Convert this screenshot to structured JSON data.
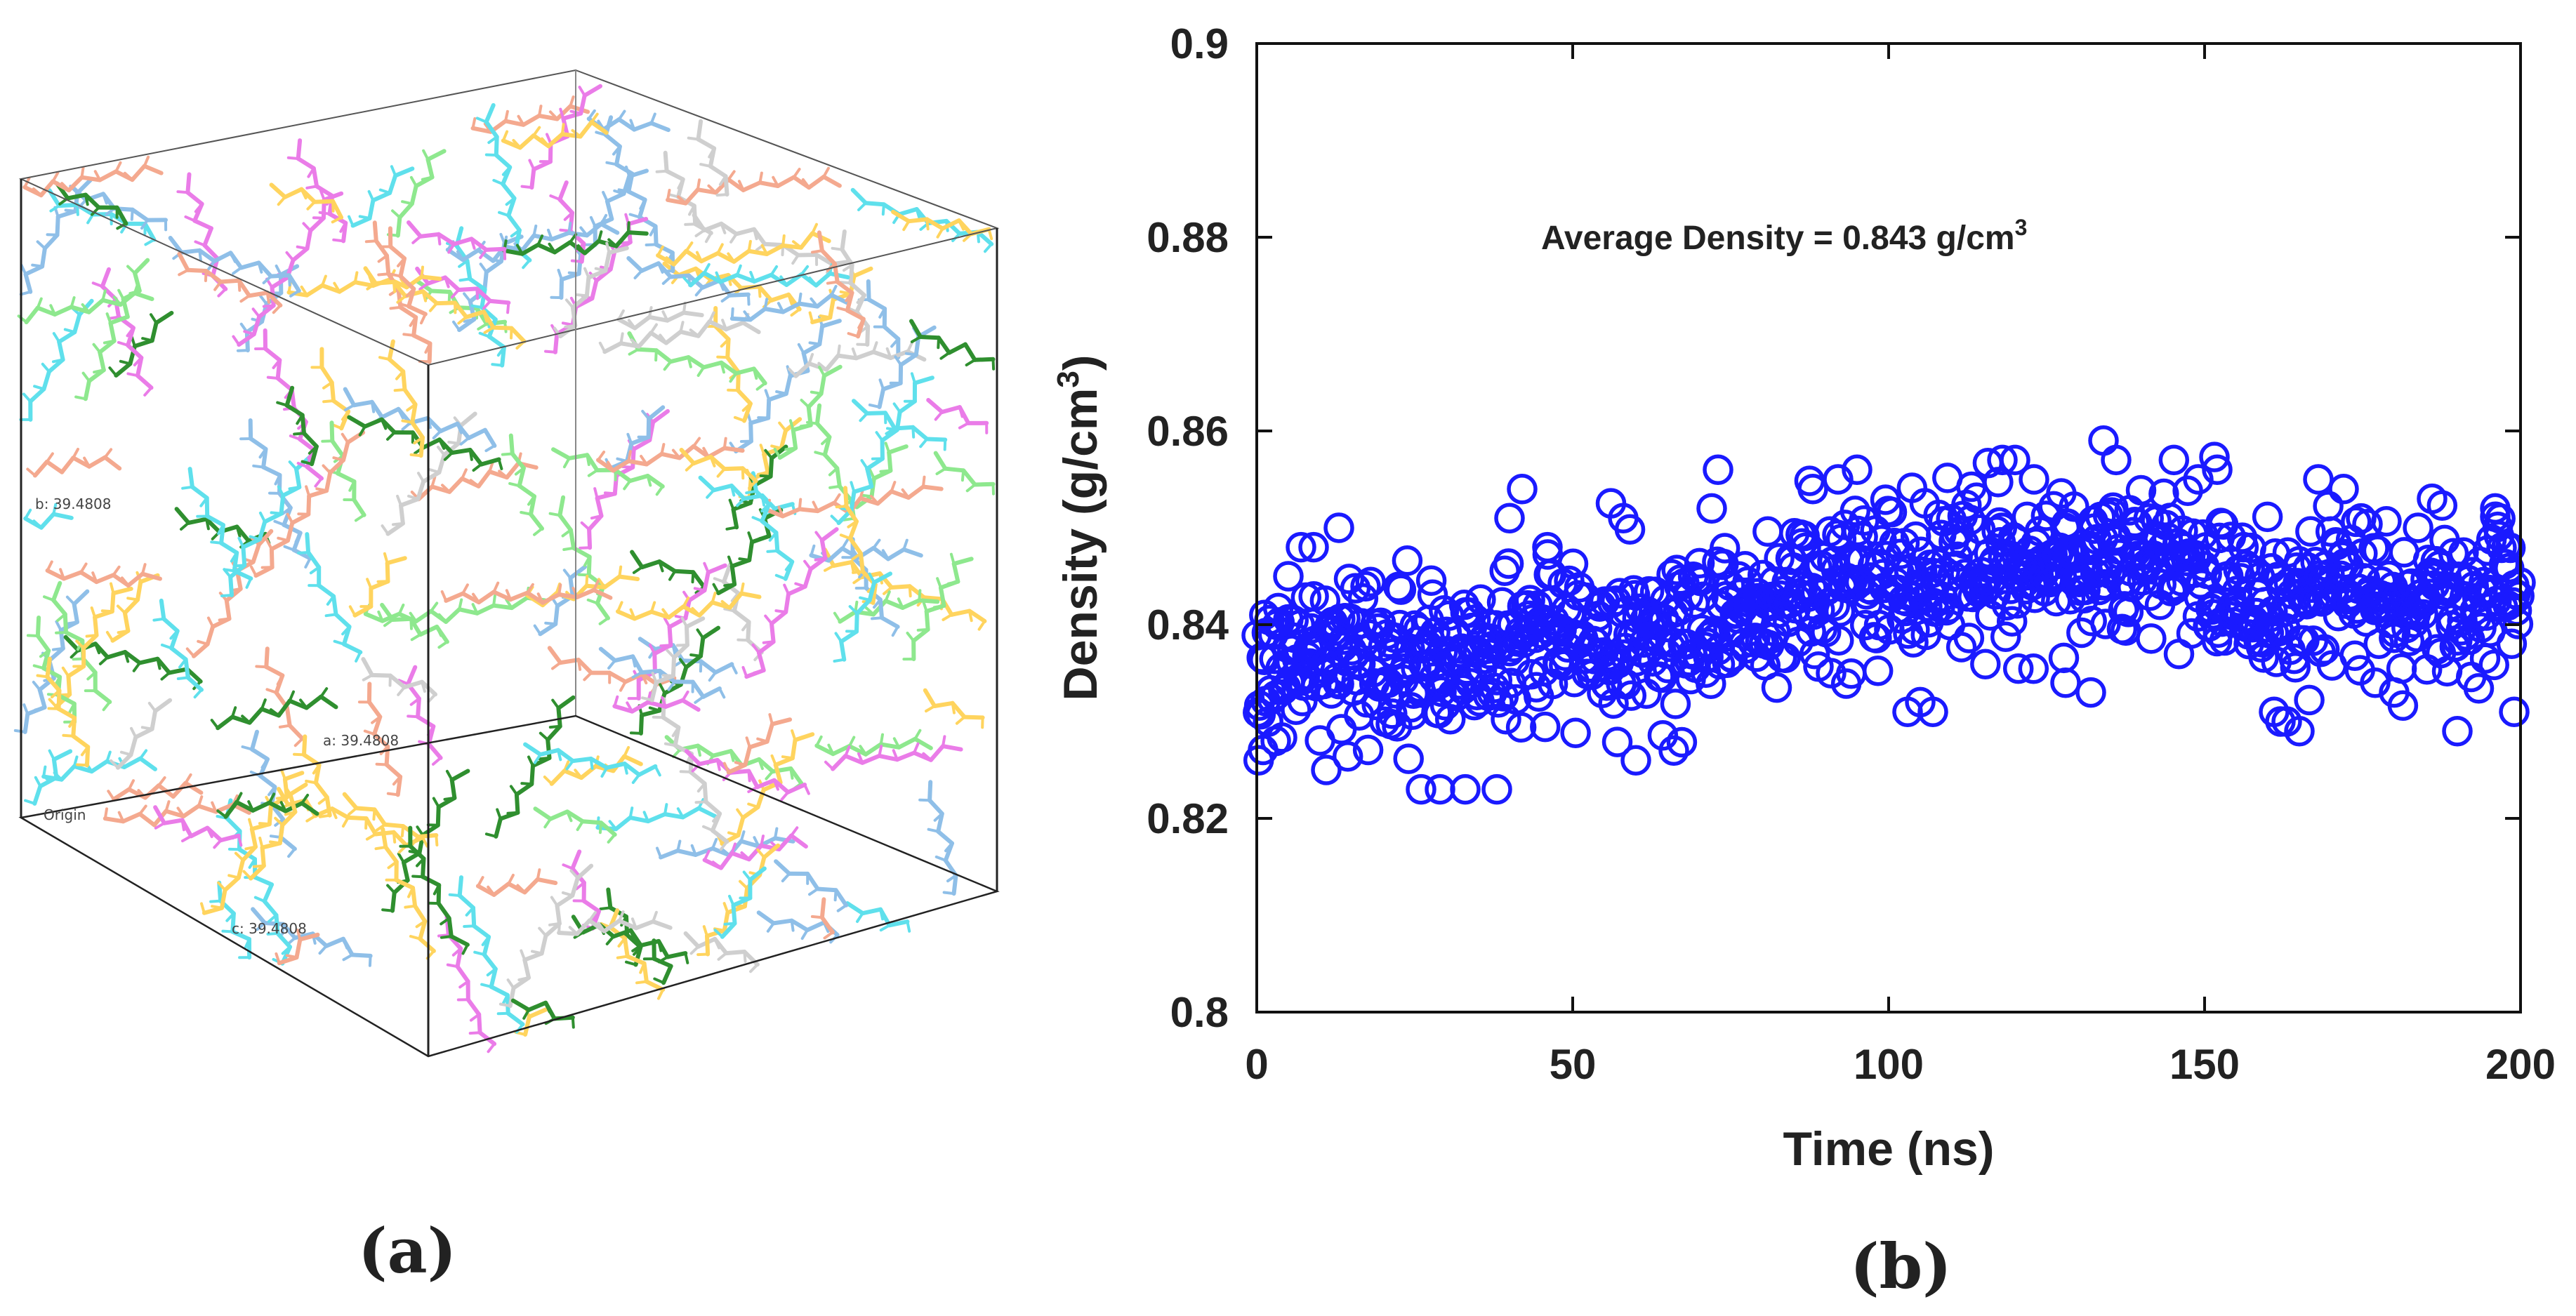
{
  "panels": {
    "a": {
      "label": "(a)",
      "cell_labels": {
        "b": "b: 39.4808",
        "a": "a: 39.4808",
        "c": "c: 39.4808",
        "origin": "Origin"
      },
      "molecule_colors": [
        "#f4a98f",
        "#5fe0ec",
        "#ffd45e",
        "#2f8f2f",
        "#ea7ce8",
        "#8ee88e",
        "#8fbfe8",
        "#cfcfcf"
      ]
    },
    "b": {
      "label": "(b)"
    }
  },
  "chart_data": {
    "type": "scatter",
    "title": "",
    "xlabel": "Time (ns)",
    "ylabel_main": "Density (g/cm",
    "ylabel_sup": "3",
    "ylabel_close": ")",
    "xlim": [
      0,
      200
    ],
    "ylim": [
      0.8,
      0.9
    ],
    "xticks": [
      0,
      50,
      100,
      150,
      200
    ],
    "xtick_labels": [
      "0",
      "50",
      "100",
      "150",
      "200"
    ],
    "yticks": [
      0.8,
      0.82,
      0.84,
      0.86,
      0.88,
      0.9
    ],
    "ytick_labels": [
      "0.8",
      "0.82",
      "0.84",
      "0.86",
      "0.88",
      "0.9"
    ],
    "grid": false,
    "marker": "open-circle",
    "series_color": "#1a1aff",
    "annotation_main": "Average Density = 0.843 g/cm",
    "annotation_sup": "3",
    "average_density": 0.843,
    "trend": {
      "t": [
        0,
        10,
        20,
        30,
        40,
        50,
        60,
        70,
        80,
        90,
        100,
        110,
        120,
        130,
        140,
        150,
        160,
        170,
        180,
        190,
        200
      ],
      "mean": [
        0.835,
        0.837,
        0.836,
        0.836,
        0.838,
        0.839,
        0.839,
        0.84,
        0.842,
        0.844,
        0.845,
        0.846,
        0.846,
        0.847,
        0.846,
        0.846,
        0.843,
        0.843,
        0.843,
        0.843,
        0.844
      ]
    },
    "noise_sd": 0.0042,
    "n_points": 1000,
    "outliers": [
      [
        0.3,
        0.826
      ],
      [
        1.2,
        0.841
      ],
      [
        3.0,
        0.828
      ],
      [
        5,
        0.845
      ],
      [
        7,
        0.848
      ],
      [
        9,
        0.848
      ],
      [
        11,
        0.825
      ],
      [
        13,
        0.85
      ],
      [
        26,
        0.823
      ],
      [
        29,
        0.823
      ],
      [
        33,
        0.823
      ],
      [
        38,
        0.823
      ],
      [
        42,
        0.854
      ],
      [
        40,
        0.851
      ],
      [
        46,
        0.848
      ],
      [
        58,
        0.851
      ],
      [
        60,
        0.826
      ],
      [
        66,
        0.827
      ],
      [
        73,
        0.856
      ],
      [
        72,
        0.852
      ],
      [
        88,
        0.854
      ],
      [
        92,
        0.855
      ],
      [
        95,
        0.856
      ],
      [
        103,
        0.831
      ],
      [
        105,
        0.832
      ],
      [
        107,
        0.831
      ],
      [
        118,
        0.857
      ],
      [
        120,
        0.857
      ],
      [
        123,
        0.855
      ],
      [
        128,
        0.834
      ],
      [
        132,
        0.833
      ],
      [
        134,
        0.859
      ],
      [
        136,
        0.857
      ],
      [
        149,
        0.855
      ],
      [
        152,
        0.856
      ],
      [
        157,
        0.838
      ],
      [
        161,
        0.831
      ],
      [
        162,
        0.83
      ],
      [
        163,
        0.83
      ],
      [
        165,
        0.829
      ],
      [
        168,
        0.855
      ],
      [
        172,
        0.854
      ],
      [
        177,
        0.834
      ],
      [
        180,
        0.833
      ],
      [
        186,
        0.853
      ],
      [
        190,
        0.829
      ],
      [
        196,
        0.852
      ],
      [
        199,
        0.831
      ]
    ]
  }
}
